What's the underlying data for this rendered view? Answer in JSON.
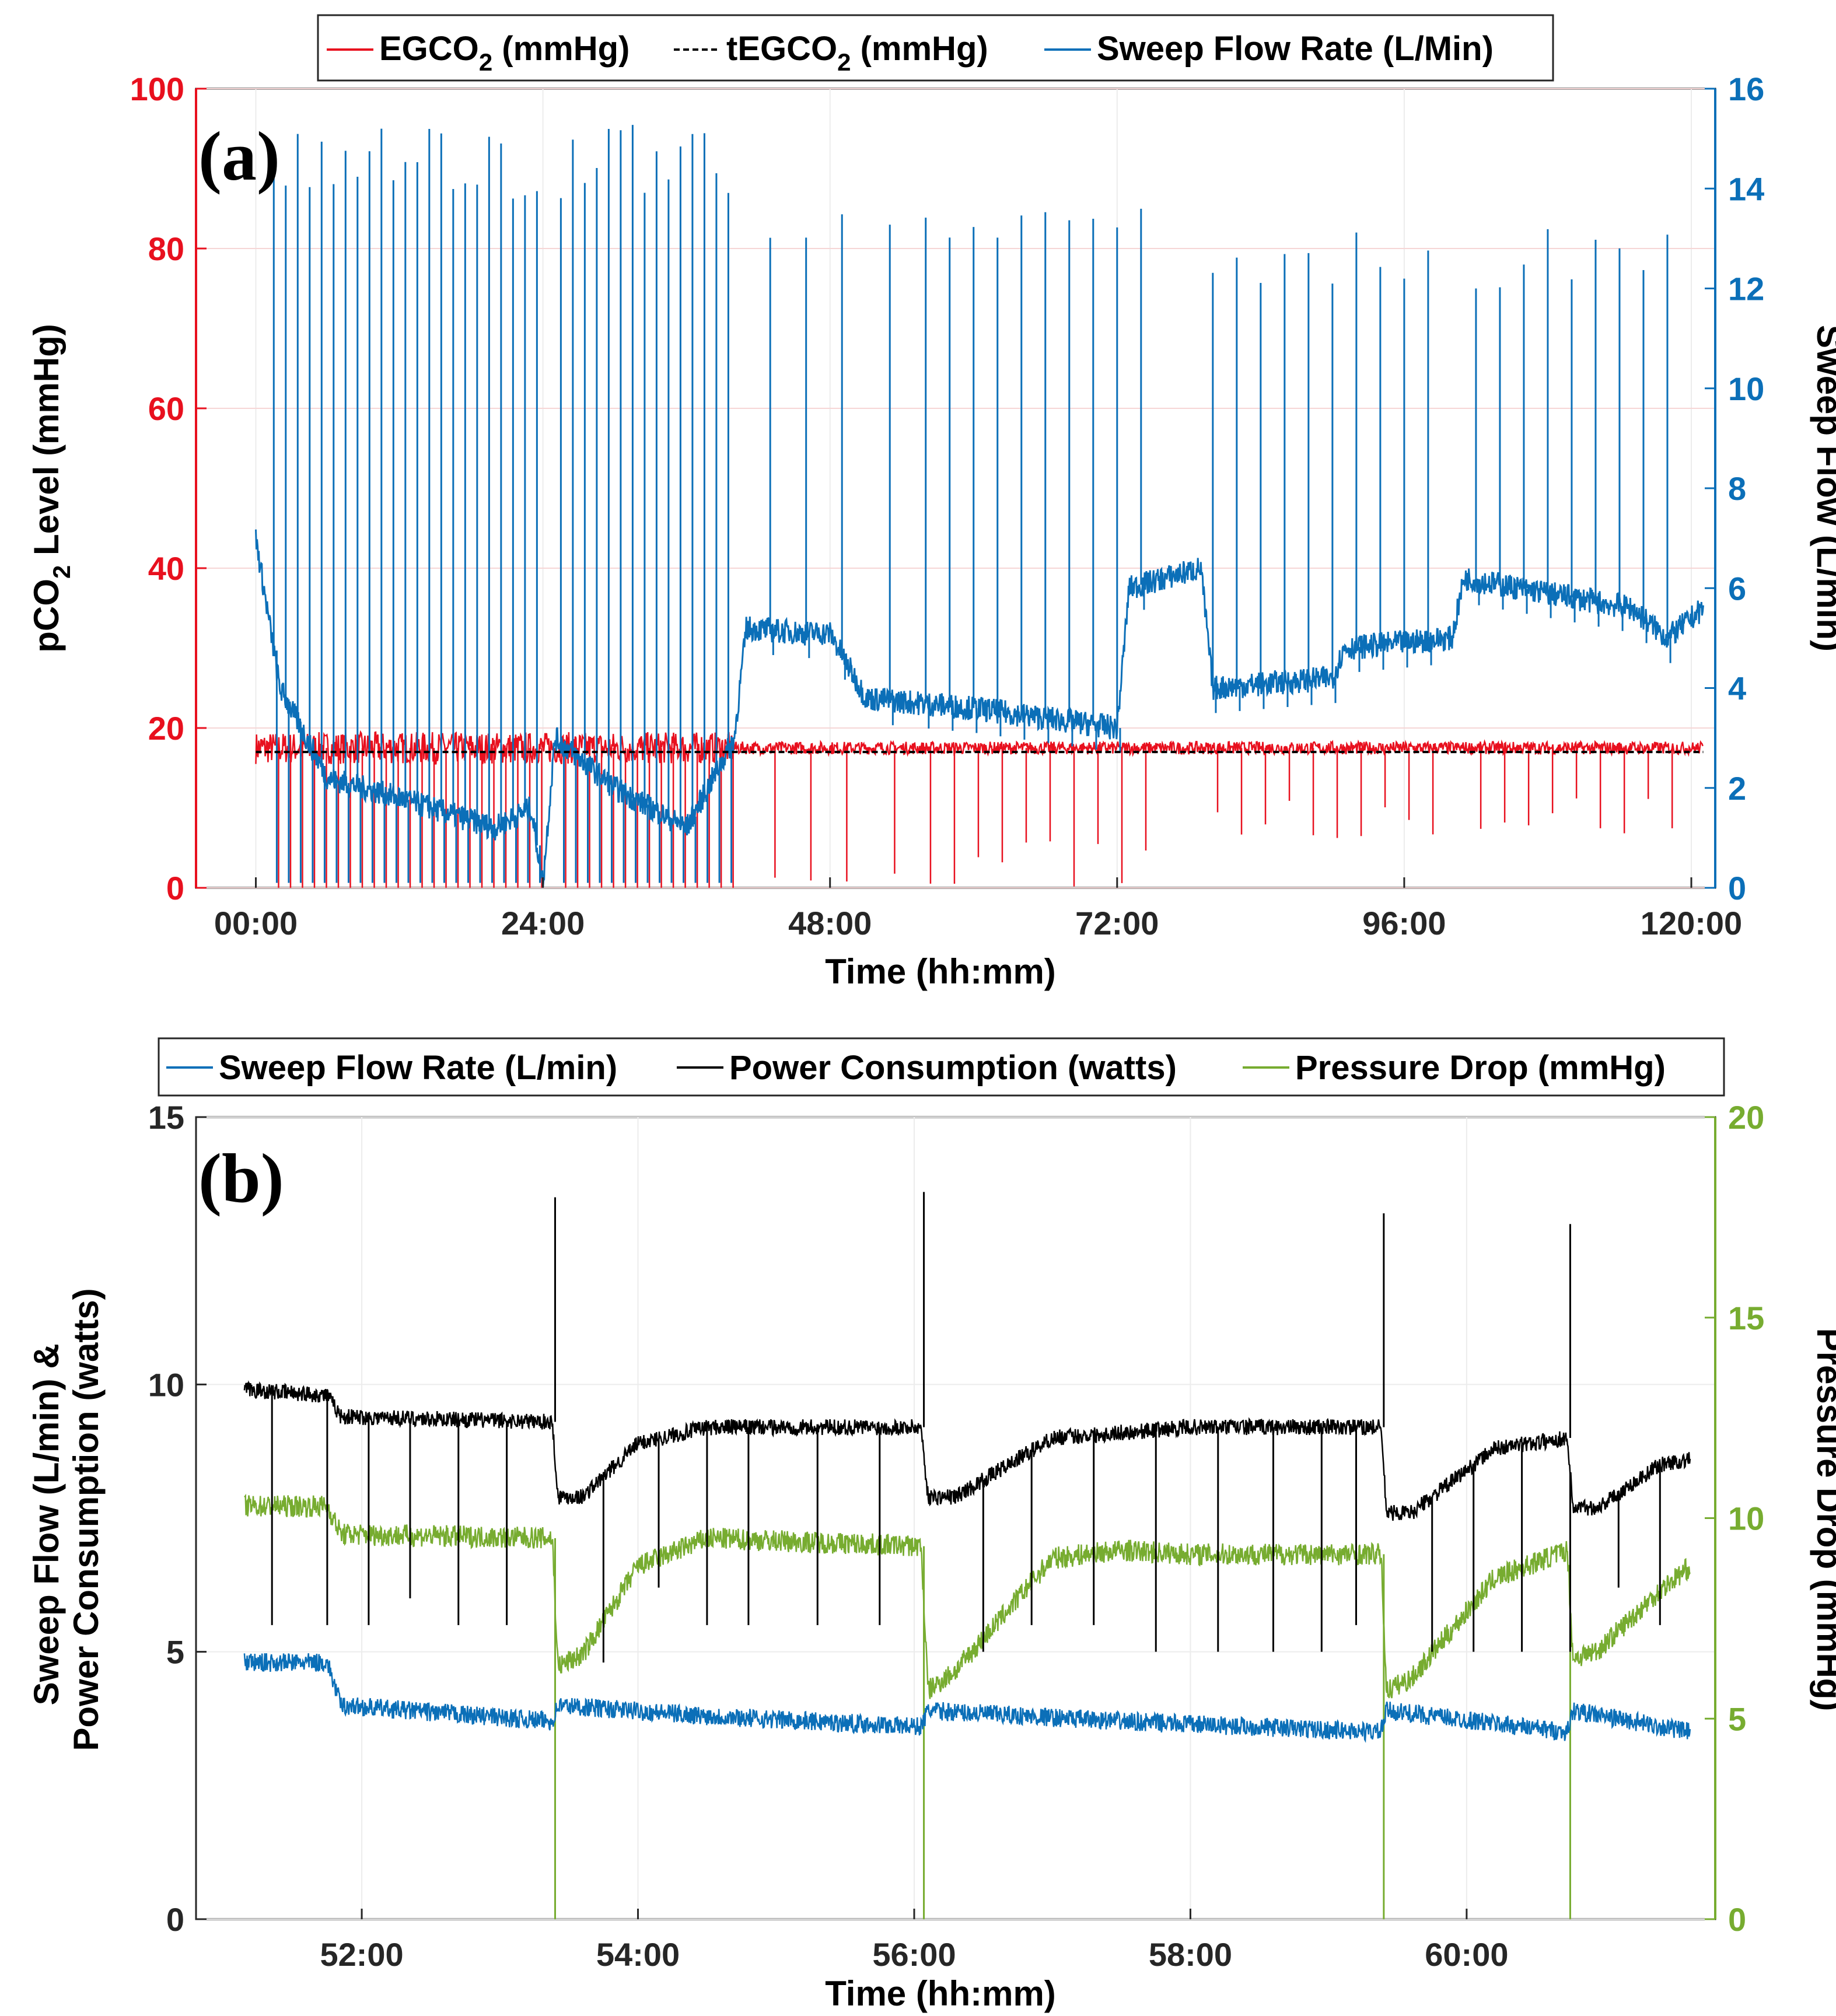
{
  "chart_data": [
    {
      "panel_label": "(a)",
      "type": "line",
      "xlabel": "Time (hh:mm)",
      "ylabel_left": {
        "pre": "pCO",
        "sub": "2",
        "post": " Level (mmHg)"
      },
      "ylabel_right": "Sweep Flow (L/min)",
      "x_ticks": [
        "00:00",
        "24:00",
        "48:00",
        "72:00",
        "96:00",
        "120:00"
      ],
      "xlim": [
        -5,
        122
      ],
      "left_ticks": [
        "0",
        "20",
        "40",
        "60",
        "80",
        "100"
      ],
      "ylim_left": [
        0,
        100
      ],
      "right_ticks": [
        "0",
        "2",
        "4",
        "6",
        "8",
        "10",
        "12",
        "14",
        "16"
      ],
      "ylim_right": [
        0,
        16
      ],
      "legend": [
        {
          "pre": "EGCO",
          "sub": "2",
          "post": " (mmHg)",
          "color": "#e8101e",
          "style": "solid"
        },
        {
          "pre": "tEGCO",
          "sub": "2",
          "post": " (mmHg)",
          "color": "#000000",
          "style": "dashed"
        },
        {
          "pre": "Sweep Flow Rate (L/Min)",
          "sub": "",
          "post": "",
          "color": "#0b6fb8",
          "style": "solid"
        }
      ],
      "series": [
        {
          "name": "EGCO2 (mmHg)",
          "axis": "left",
          "color": "#e8101e",
          "baseline": 17.5,
          "description_points": [
            [
              0,
              17
            ],
            [
              24,
              17
            ],
            [
              48,
              17.5
            ],
            [
              72,
              17.5
            ],
            [
              96,
              17
            ],
            [
              120,
              16
            ]
          ]
        },
        {
          "name": "tEGCO2 (mmHg)",
          "axis": "left",
          "color": "#000000",
          "value": 17
        },
        {
          "name": "Sweep Flow Rate (L/Min)",
          "axis": "right",
          "color": "#0b6fb8",
          "baseline_points": [
            [
              0,
              7
            ],
            [
              2,
              4
            ],
            [
              6,
              2.2
            ],
            [
              12,
              1.8
            ],
            [
              20,
              1.2
            ],
            [
              23,
              1.6
            ],
            [
              24,
              0.1
            ],
            [
              25,
              3
            ],
            [
              30,
              2
            ],
            [
              36,
              1.2
            ],
            [
              40,
              3
            ],
            [
              41,
              5.2
            ],
            [
              46,
              5.1
            ],
            [
              48,
              5.1
            ],
            [
              51,
              3.8
            ],
            [
              60,
              3.6
            ],
            [
              72,
              3.2
            ],
            [
              73,
              6
            ],
            [
              79,
              6.4
            ],
            [
              80,
              4
            ],
            [
              90,
              4.2
            ],
            [
              91,
              4.8
            ],
            [
              100,
              5
            ],
            [
              101,
              6.2
            ],
            [
              115,
              5.6
            ],
            [
              118,
              5
            ],
            [
              121,
              5.6
            ]
          ],
          "spike_times": [
            1.5,
            2.5,
            3.5,
            4.5,
            5.5,
            6.5,
            7.5,
            8.5,
            9.5,
            10.5,
            11.5,
            12.5,
            13.5,
            14.5,
            15.5,
            16.5,
            17.5,
            18.5,
            19.5,
            20.5,
            21.5,
            22.5,
            23.5,
            25.5,
            26.5,
            27.5,
            28.5,
            29.5,
            30.5,
            31.5,
            32.5,
            33.5,
            34.5,
            35.5,
            36.5,
            37.5,
            38.5,
            39.5,
            43,
            46,
            49,
            53,
            56,
            58,
            60,
            62,
            64,
            66,
            68,
            70,
            72,
            74,
            80,
            82,
            84,
            86,
            88,
            90,
            92,
            94,
            96,
            98,
            102,
            104,
            106,
            108,
            110,
            112,
            114,
            116,
            118
          ],
          "spike_peak": 15.3
        }
      ]
    },
    {
      "panel_label": "(b)",
      "type": "line",
      "xlabel": "Time (hh:mm)",
      "ylabel_left_lines": [
        "Sweep Flow (L/min) &",
        "Power Consumption (watts)"
      ],
      "ylabel_right": "Pressure Drop (mmHg)",
      "x_ticks": [
        "52:00",
        "54:00",
        "56:00",
        "58:00",
        "60:00"
      ],
      "x_tick_values": [
        52,
        54,
        56,
        58,
        60
      ],
      "xlim": [
        50.8,
        61.8
      ],
      "left_ticks": [
        "0",
        "5",
        "10",
        "15"
      ],
      "ylim_left": [
        0,
        15
      ],
      "right_ticks": [
        "0",
        "5",
        "10",
        "15",
        "20"
      ],
      "ylim_right": [
        0,
        20
      ],
      "legend": [
        {
          "label": "Sweep Flow Rate (L/min)",
          "color": "#0b6fb8"
        },
        {
          "label": "Power Consumption (watts)",
          "color": "#000000"
        },
        {
          "label": "Pressure Drop (mmHg)",
          "color": "#77ac30"
        }
      ],
      "resets": [
        53.4,
        56.07,
        59.4,
        60.75
      ],
      "series": [
        {
          "name": "Power Consumption (watts)",
          "axis": "left",
          "color": "#000000",
          "points": [
            [
              51.15,
              9.9
            ],
            [
              51.75,
              9.8
            ],
            [
              51.85,
              9.4
            ],
            [
              53.38,
              9.3
            ],
            [
              53.42,
              7.9
            ],
            [
              53.6,
              7.9
            ],
            [
              54.0,
              8.9
            ],
            [
              54.5,
              9.2
            ],
            [
              56.05,
              9.2
            ],
            [
              56.1,
              7.9
            ],
            [
              56.3,
              7.9
            ],
            [
              57.0,
              9.0
            ],
            [
              57.5,
              9.1
            ],
            [
              58.0,
              9.2
            ],
            [
              59.38,
              9.2
            ],
            [
              59.42,
              7.6
            ],
            [
              59.6,
              7.6
            ],
            [
              60.2,
              8.8
            ],
            [
              60.73,
              9.0
            ],
            [
              60.77,
              7.7
            ],
            [
              60.95,
              7.7
            ],
            [
              61.4,
              8.5
            ],
            [
              61.62,
              8.6
            ]
          ],
          "spike_peaks": [
            [
              53.4,
              13.5
            ],
            [
              56.07,
              13.6
            ],
            [
              59.4,
              13.2
            ],
            [
              60.75,
              13.0
            ]
          ],
          "dips": [
            [
              51.35,
              5.5
            ],
            [
              51.75,
              5.5
            ],
            [
              52.05,
              5.5
            ],
            [
              52.35,
              6.0
            ],
            [
              52.7,
              5.5
            ],
            [
              53.05,
              5.5
            ],
            [
              53.75,
              4.8
            ],
            [
              54.15,
              6.2
            ],
            [
              54.5,
              5.5
            ],
            [
              54.8,
              5.5
            ],
            [
              55.3,
              5.5
            ],
            [
              55.75,
              5.5
            ],
            [
              56.5,
              5.0
            ],
            [
              56.85,
              5.5
            ],
            [
              57.3,
              5.5
            ],
            [
              57.75,
              5.0
            ],
            [
              58.2,
              5.0
            ],
            [
              58.6,
              5.0
            ],
            [
              58.95,
              5.0
            ],
            [
              59.2,
              5.5
            ],
            [
              59.75,
              5.0
            ],
            [
              60.05,
              5.0
            ],
            [
              60.4,
              5.0
            ],
            [
              60.75,
              5.0
            ],
            [
              61.1,
              6.2
            ],
            [
              61.4,
              5.5
            ]
          ]
        },
        {
          "name": "Pressure Drop (mmHg)",
          "axis": "right",
          "color": "#77ac30",
          "points": [
            [
              51.15,
              10.3
            ],
            [
              51.75,
              10.3
            ],
            [
              51.85,
              9.6
            ],
            [
              53.38,
              9.5
            ],
            [
              53.42,
              6.3
            ],
            [
              53.6,
              6.6
            ],
            [
              54.0,
              8.8
            ],
            [
              54.5,
              9.5
            ],
            [
              56.05,
              9.3
            ],
            [
              56.1,
              5.7
            ],
            [
              56.3,
              6.2
            ],
            [
              57.0,
              9.0
            ],
            [
              57.5,
              9.2
            ],
            [
              58.0,
              9.1
            ],
            [
              59.38,
              9.1
            ],
            [
              59.42,
              5.7
            ],
            [
              59.6,
              6.0
            ],
            [
              60.2,
              8.5
            ],
            [
              60.73,
              9.2
            ],
            [
              60.77,
              6.5
            ],
            [
              60.95,
              6.7
            ],
            [
              61.4,
              8.2
            ],
            [
              61.62,
              8.8
            ]
          ],
          "drops_to_zero_at": [
            53.4,
            56.07,
            59.4,
            60.75
          ]
        },
        {
          "name": "Sweep Flow Rate (L/min)",
          "axis": "left",
          "color": "#0b6fb8",
          "points": [
            [
              51.15,
              4.8
            ],
            [
              51.75,
              4.8
            ],
            [
              51.85,
              4.0
            ],
            [
              53.38,
              3.7
            ],
            [
              53.42,
              4.0
            ],
            [
              54.5,
              3.8
            ],
            [
              56.05,
              3.6
            ],
            [
              56.1,
              3.9
            ],
            [
              57.5,
              3.7
            ],
            [
              59.38,
              3.5
            ],
            [
              59.42,
              3.9
            ],
            [
              60.73,
              3.5
            ],
            [
              60.77,
              3.9
            ],
            [
              61.62,
              3.5
            ]
          ]
        }
      ]
    }
  ]
}
